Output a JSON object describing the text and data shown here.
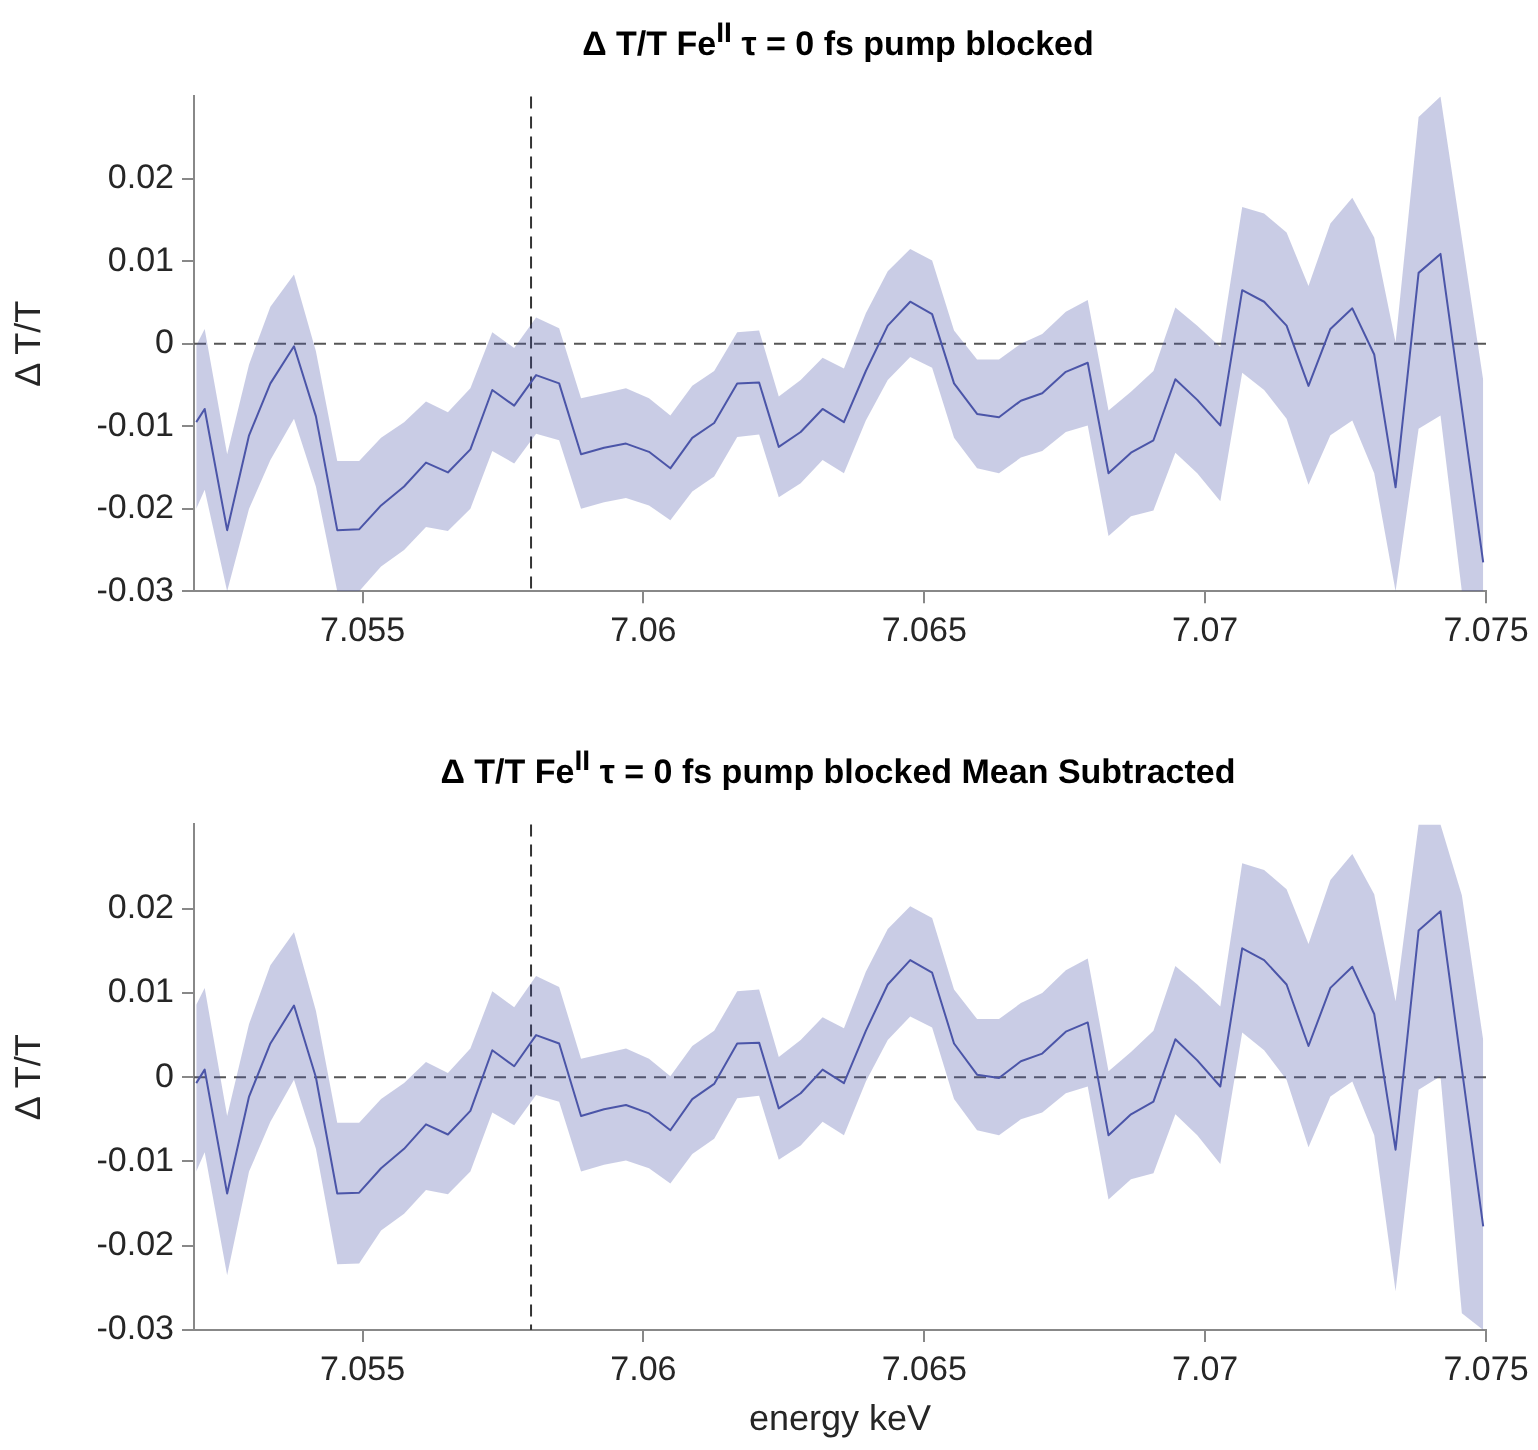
{
  "chart_data": [
    {
      "type": "line",
      "title": "Δ T/T Fe$^{II}$ τ = 0 fs pump blocked",
      "ylabel": "Δ T/T",
      "marker": "none",
      "x": [
        7.05204,
        7.05219,
        7.05259,
        7.05298,
        7.05336,
        7.05378,
        7.05417,
        7.05455,
        7.05494,
        7.05533,
        7.05574,
        7.05613,
        7.05652,
        7.05692,
        7.05731,
        7.0577,
        7.05809,
        7.0585,
        7.05889,
        7.0593,
        7.05969,
        7.0601,
        7.06048,
        7.06087,
        7.06126,
        7.06167,
        7.06206,
        7.06241,
        7.0628,
        7.06319,
        7.06357,
        7.06396,
        7.06435,
        7.06475,
        7.06514,
        7.06553,
        7.06594,
        7.06633,
        7.06672,
        7.0671,
        7.06752,
        7.06791,
        7.06828,
        7.06868,
        7.06908,
        7.06947,
        7.06986,
        7.07027,
        7.07066,
        7.07105,
        7.07145,
        7.07184,
        7.07223,
        7.07262,
        7.07301,
        7.07339,
        7.0738,
        7.07419,
        7.07457,
        7.07495
      ],
      "series": [
        {
          "color": "#4b55a8",
          "values": [
            -0.0095,
            -0.0079,
            -0.0226,
            -0.0111,
            -0.0048,
            -0.0003,
            -0.0088,
            -0.0226,
            -0.0225,
            -0.0196,
            -0.0173,
            -0.0144,
            -0.0156,
            -0.0128,
            -0.0056,
            -0.0075,
            -0.0038,
            -0.0048,
            -0.0134,
            -0.0126,
            -0.0121,
            -0.0131,
            -0.0151,
            -0.0114,
            -0.0096,
            -0.0048,
            -0.0047,
            -0.0125,
            -0.0107,
            -0.0079,
            -0.0095,
            -0.0033,
            0.0022,
            0.0051,
            0.0036,
            -0.0048,
            -0.0085,
            -0.0089,
            -0.0069,
            -0.006,
            -0.0034,
            -0.0023,
            -0.0157,
            -0.0132,
            -0.0117,
            -0.0043,
            -0.0068,
            -0.0099,
            0.0065,
            0.0051,
            0.0022,
            -0.0051,
            0.0018,
            0.0043,
            -0.0013,
            -0.0174,
            0.0086,
            0.0109,
            -0.0078,
            -0.0265
          ],
          "upper": [
            -0.0002,
            0.0018,
            -0.0134,
            -0.0025,
            0.0045,
            0.0084,
            -0.0009,
            -0.0142,
            -0.0142,
            -0.0114,
            -0.0095,
            -0.007,
            -0.0083,
            -0.0054,
            0.0014,
            -0.0005,
            0.0032,
            0.0019,
            -0.0066,
            -0.006,
            -0.0054,
            -0.0066,
            -0.0087,
            -0.0051,
            -0.0033,
            0.0014,
            0.0016,
            -0.0064,
            -0.0044,
            -0.0017,
            -0.003,
            0.0037,
            0.0088,
            0.0115,
            0.0101,
            0.0016,
            -0.0019,
            -0.0019,
            0,
            0.0012,
            0.0039,
            0.0053,
            -0.0081,
            -0.0058,
            -0.0033,
            0.0044,
            0.0022,
            -0.0004,
            0.0166,
            0.0158,
            0.0135,
            0.007,
            0.0146,
            0.0177,
            0.0129,
            0.0002,
            0.0275,
            0.03,
            0.0128,
            -0.0044
          ],
          "lower": [
            -0.02,
            -0.0177,
            -0.03,
            -0.02,
            -0.0141,
            -0.0091,
            -0.0173,
            -0.03,
            -0.03,
            -0.027,
            -0.025,
            -0.0222,
            -0.0227,
            -0.02,
            -0.013,
            -0.0145,
            -0.0109,
            -0.0117,
            -0.02,
            -0.0192,
            -0.0187,
            -0.0196,
            -0.0214,
            -0.0179,
            -0.0161,
            -0.0113,
            -0.011,
            -0.0186,
            -0.0169,
            -0.0141,
            -0.0157,
            -0.0093,
            -0.0044,
            -0.0016,
            -0.0029,
            -0.0114,
            -0.0151,
            -0.0157,
            -0.0138,
            -0.013,
            -0.0107,
            -0.0099,
            -0.0233,
            -0.0209,
            -0.0202,
            -0.0132,
            -0.0157,
            -0.0191,
            -0.0035,
            -0.0056,
            -0.0091,
            -0.0171,
            -0.0111,
            -0.0093,
            -0.0157,
            -0.03,
            -0.0103,
            -0.0087,
            -0.03,
            -0.03
          ]
        }
      ],
      "xlim": [
        7.052,
        7.075
      ],
      "xticks": [
        7.055,
        7.06,
        7.065,
        7.07,
        7.075
      ],
      "ylim": [
        -0.03,
        0.03
      ],
      "yticks": [
        -0.03,
        -0.02,
        -0.01,
        0,
        0.01,
        0.02
      ],
      "ref_lines": [
        {
          "axis": "y",
          "value": 0,
          "color": "#555555",
          "line_style": "dashed"
        },
        {
          "axis": "x",
          "value": 7.058,
          "color": "#333333",
          "line_style": "dashed"
        }
      ]
    },
    {
      "type": "line",
      "title": "Δ T/T Fe$^{II}$ τ = 0 fs pump blocked Mean Subtracted",
      "xlabel": "energy keV",
      "ylabel": "Δ T/T",
      "marker": "none",
      "x": [
        7.05204,
        7.05219,
        7.05259,
        7.05298,
        7.05336,
        7.05378,
        7.05417,
        7.05455,
        7.05494,
        7.05533,
        7.05574,
        7.05613,
        7.05652,
        7.05692,
        7.05731,
        7.0577,
        7.05809,
        7.0585,
        7.05889,
        7.0593,
        7.05969,
        7.0601,
        7.06048,
        7.06087,
        7.06126,
        7.06167,
        7.06206,
        7.06241,
        7.0628,
        7.06319,
        7.06357,
        7.06396,
        7.06435,
        7.06475,
        7.06514,
        7.06553,
        7.06594,
        7.06633,
        7.06672,
        7.0671,
        7.06752,
        7.06791,
        7.06828,
        7.06868,
        7.06908,
        7.06947,
        7.06986,
        7.07027,
        7.07066,
        7.07105,
        7.07145,
        7.07184,
        7.07223,
        7.07262,
        7.07301,
        7.07339,
        7.0738,
        7.07419,
        7.07457,
        7.07495
      ],
      "series": [
        {
          "color": "#4b55a8",
          "values": [
            -0.0007,
            0.0009,
            -0.0138,
            -0.0023,
            0.004,
            0.0085,
            0,
            -0.0138,
            -0.0137,
            -0.0108,
            -0.0085,
            -0.0056,
            -0.0068,
            -0.004,
            0.0032,
            0.0013,
            0.005,
            0.004,
            -0.0046,
            -0.0038,
            -0.0033,
            -0.0043,
            -0.0063,
            -0.0026,
            -0.0008,
            0.004,
            0.0041,
            -0.0037,
            -0.0019,
            0.0009,
            -0.0007,
            0.0055,
            0.011,
            0.0139,
            0.0124,
            0.004,
            0.0003,
            -0.0001,
            0.0019,
            0.0028,
            0.0054,
            0.0065,
            -0.0069,
            -0.0044,
            -0.0029,
            0.0045,
            0.002,
            -0.0011,
            0.0153,
            0.0139,
            0.011,
            0.0037,
            0.0106,
            0.0131,
            0.0075,
            -0.0086,
            0.0174,
            0.0197,
            0.001,
            -0.0177
          ],
          "upper": [
            0.0086,
            0.0106,
            -0.0046,
            0.0063,
            0.0133,
            0.0172,
            0.0079,
            -0.0054,
            -0.0054,
            -0.0026,
            -0.0007,
            0.0018,
            0.0005,
            0.0034,
            0.0102,
            0.0083,
            0.012,
            0.0107,
            0.0022,
            0.0028,
            0.0034,
            0.0022,
            0.0001,
            0.0037,
            0.0055,
            0.0102,
            0.0104,
            0.0024,
            0.0044,
            0.0071,
            0.0058,
            0.0125,
            0.0176,
            0.0203,
            0.0189,
            0.0104,
            0.0069,
            0.0069,
            0.0088,
            0.01,
            0.0127,
            0.0141,
            0.0007,
            0.003,
            0.0055,
            0.0132,
            0.011,
            0.0084,
            0.0254,
            0.0246,
            0.0223,
            0.0158,
            0.0234,
            0.0265,
            0.0217,
            0.009,
            0.03,
            0.03,
            0.0216,
            0.0044
          ],
          "lower": [
            -0.0112,
            -0.0089,
            -0.0235,
            -0.0112,
            -0.0053,
            -0.0003,
            -0.0085,
            -0.0222,
            -0.0221,
            -0.0182,
            -0.0162,
            -0.0134,
            -0.0139,
            -0.0112,
            -0.0042,
            -0.0057,
            -0.0021,
            -0.0029,
            -0.0112,
            -0.0104,
            -0.0099,
            -0.0108,
            -0.0126,
            -0.0091,
            -0.0073,
            -0.0025,
            -0.0022,
            -0.0098,
            -0.0081,
            -0.0053,
            -0.0069,
            -0.0005,
            0.0044,
            0.0072,
            0.0059,
            -0.0026,
            -0.0063,
            -0.0069,
            -0.005,
            -0.0042,
            -0.0019,
            -0.0011,
            -0.0145,
            -0.0121,
            -0.0114,
            -0.0044,
            -0.0069,
            -0.0103,
            0.0053,
            0.0032,
            -0.0003,
            -0.0083,
            -0.0023,
            -0.0005,
            -0.0069,
            -0.0254,
            -0.0015,
            0.0001,
            -0.028,
            -0.03
          ]
        }
      ],
      "xlim": [
        7.052,
        7.075
      ],
      "xticks": [
        7.055,
        7.06,
        7.065,
        7.07,
        7.075
      ],
      "ylim": [
        -0.03,
        0.03
      ],
      "yticks": [
        -0.03,
        -0.02,
        -0.01,
        0,
        0.01,
        0.02
      ],
      "ref_lines": [
        {
          "axis": "y",
          "value": 0,
          "color": "#555555",
          "line_style": "dashed"
        },
        {
          "axis": "x",
          "value": 7.058,
          "color": "#333333",
          "line_style": "dashed"
        }
      ]
    }
  ]
}
